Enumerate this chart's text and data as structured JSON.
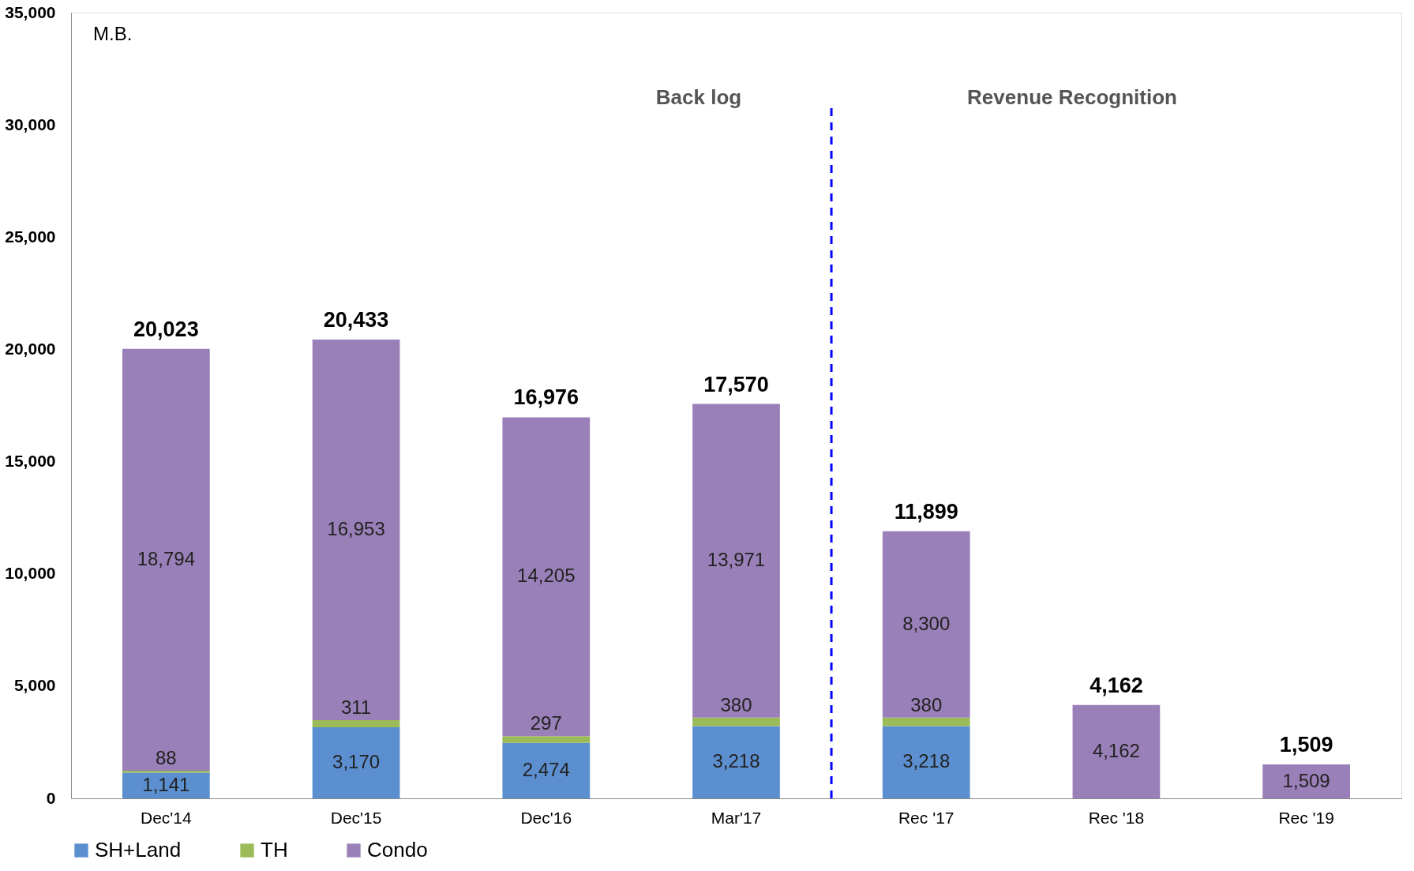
{
  "chart_data": {
    "type": "bar",
    "stacked": true,
    "categories": [
      "Dec'14",
      "Dec'15",
      "Dec'16",
      "Mar'17",
      "Rec '17",
      "Rec '18",
      "Rec '19"
    ],
    "series": [
      {
        "name": "SH+Land",
        "color": "#5b8fd0",
        "values": [
          1141,
          3170,
          2474,
          3218,
          3218,
          null,
          null
        ],
        "value_labels": [
          "1,141",
          "3,170",
          "2,474",
          "3,218",
          "3,218",
          null,
          null
        ]
      },
      {
        "name": "TH",
        "color": "#9bbb59",
        "values": [
          88,
          311,
          297,
          380,
          380,
          null,
          null
        ],
        "value_labels": [
          "88",
          "311",
          "297",
          "380",
          "380",
          null,
          null
        ]
      },
      {
        "name": "Condo",
        "color": "#9a80b8",
        "values": [
          18794,
          16953,
          14205,
          13971,
          8300,
          4162,
          1509
        ],
        "value_labels": [
          "18,794",
          "16,953",
          "14,205",
          "13,971",
          "8,300",
          "4,162",
          "1,509"
        ]
      }
    ],
    "totals": [
      "20,023",
      "20,433",
      "16,976",
      "17,570",
      "11,899",
      "4,162",
      "1,509"
    ],
    "ylim": [
      0,
      35000
    ],
    "yticks": [
      0,
      {
        "value": 5000,
        "label": "5,000"
      },
      {
        "value": 10000,
        "label": "10,000"
      },
      {
        "value": 15000,
        "label": "15,000"
      },
      {
        "value": 20000,
        "label": "20,000"
      },
      {
        "value": 25000,
        "label": "25,000"
      },
      {
        "value": 30000,
        "label": "30,000"
      },
      {
        "value": 35000,
        "label": "35,000"
      }
    ],
    "ref_lines": [
      {
        "axis": "x",
        "value": "Rec '17",
        "color": "#0000ff",
        "line_style": "dashed"
      }
    ],
    "annotations": [
      "M.B.",
      "Back log",
      "Revenue Recognition"
    ],
    "legend": "bottom",
    "grid": false
  }
}
